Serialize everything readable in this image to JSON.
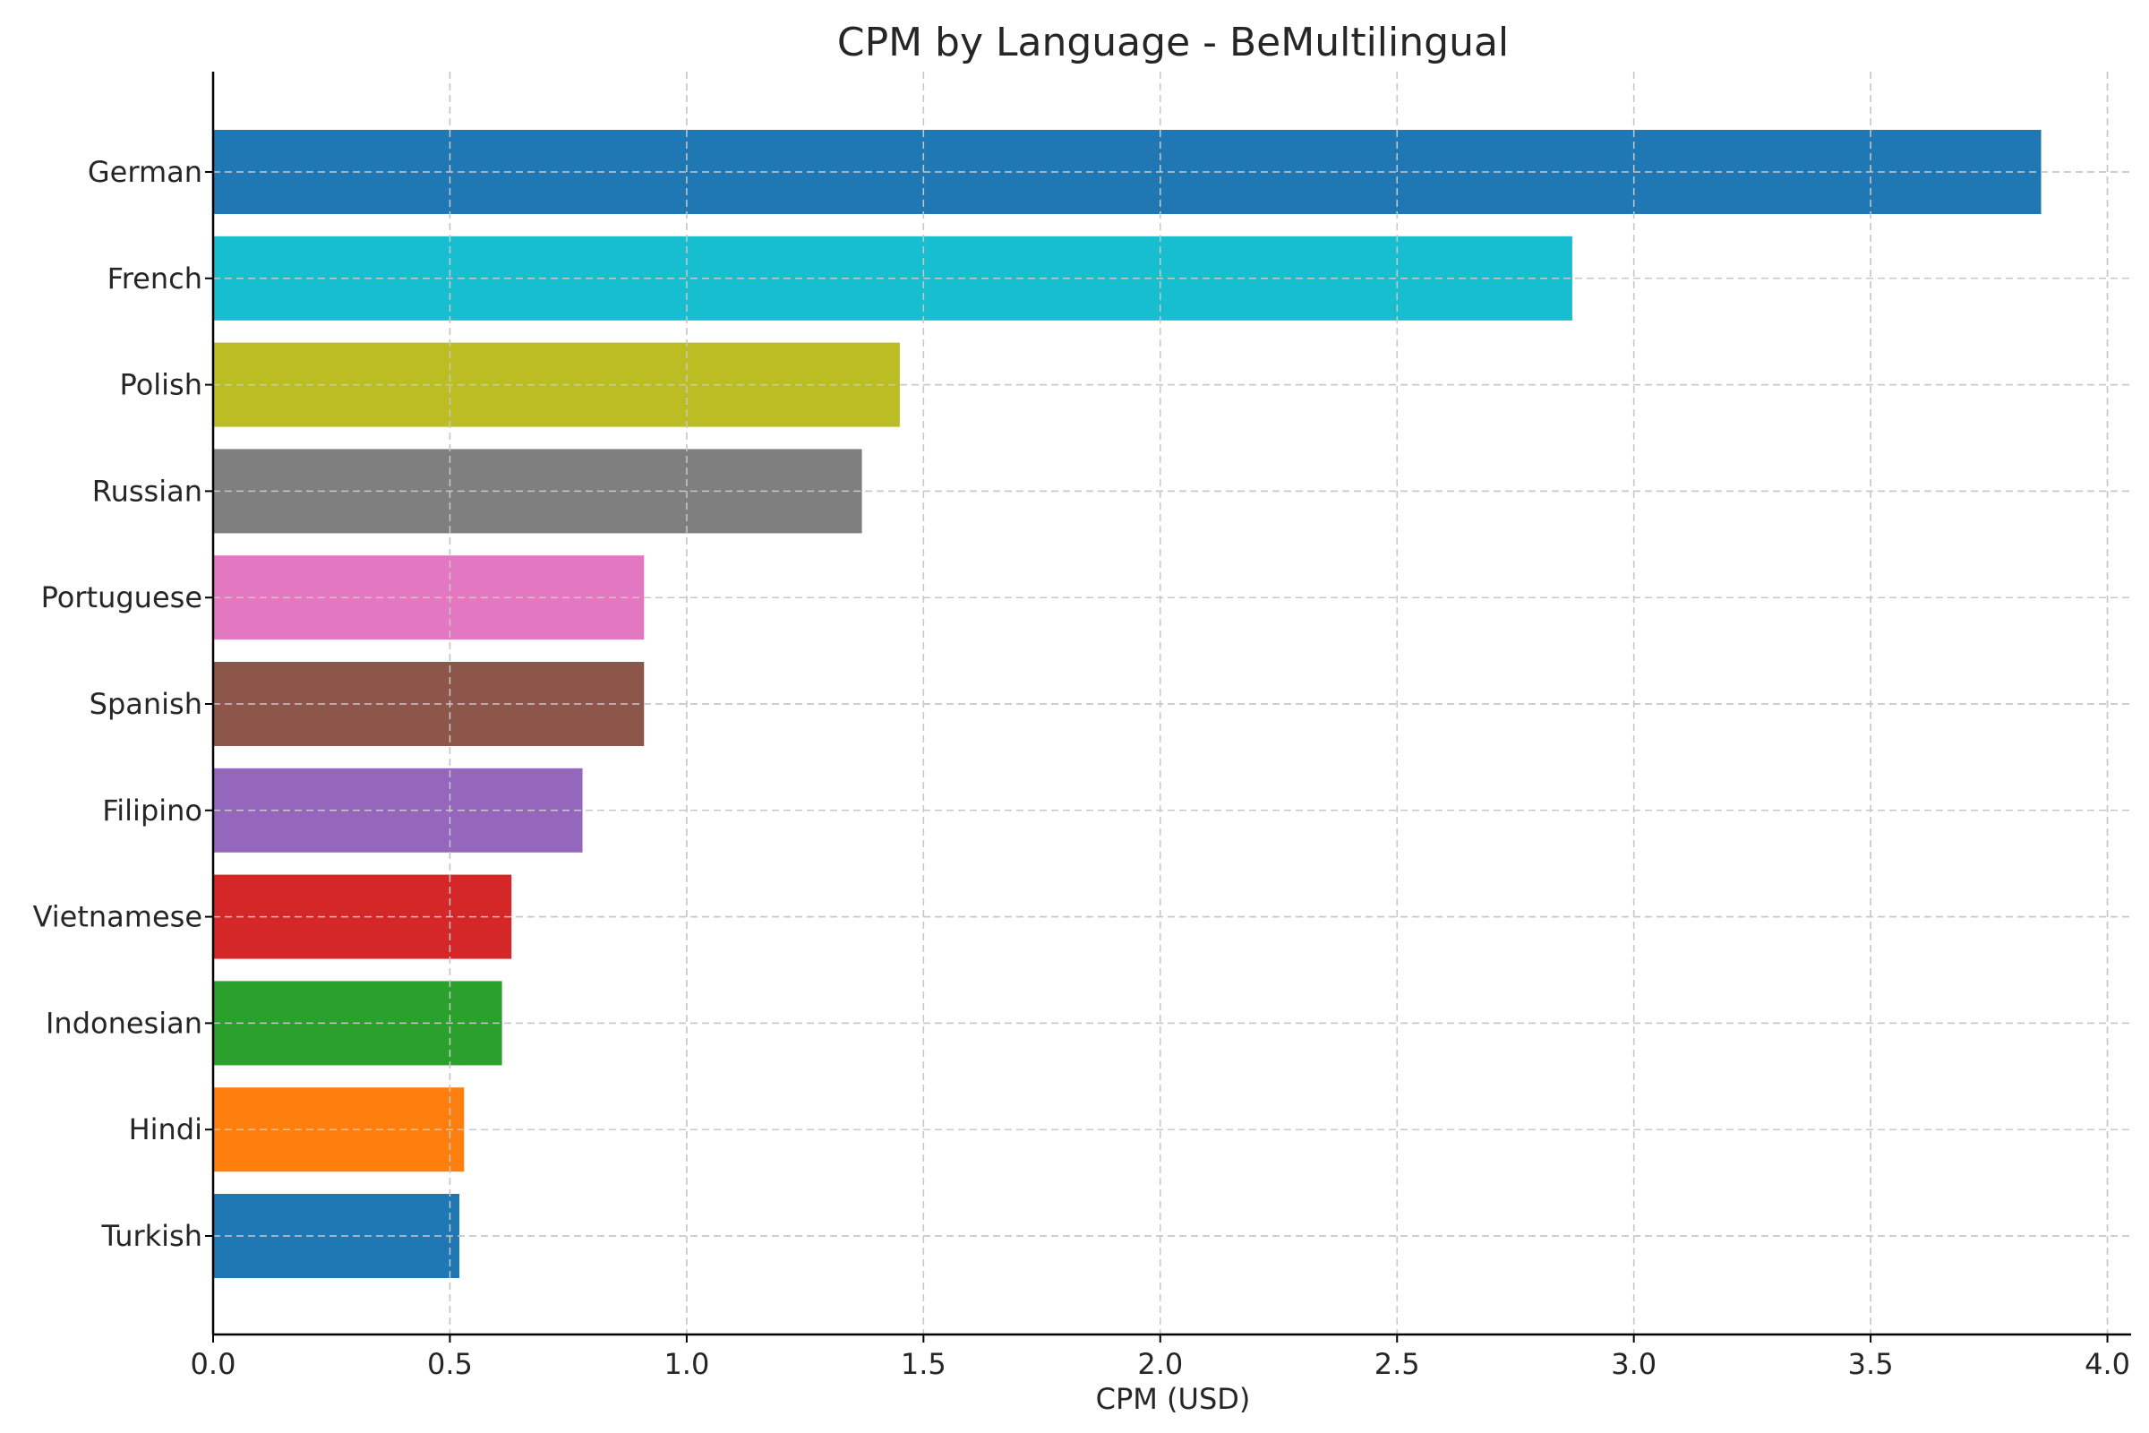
{
  "chart_data": {
    "type": "bar",
    "orientation": "horizontal",
    "title": "CPM by Language - BeMultilingual",
    "xlabel": "CPM (USD)",
    "ylabel": "",
    "xlim": [
      0,
      4.05
    ],
    "xticks": [
      "0.0",
      "0.5",
      "1.0",
      "1.5",
      "2.0",
      "2.5",
      "3.0",
      "3.5",
      "4.0"
    ],
    "grid": true,
    "categories": [
      "German",
      "French",
      "Polish",
      "Russian",
      "Portuguese",
      "Spanish",
      "Filipino",
      "Vietnamese",
      "Indonesian",
      "Hindi",
      "Turkish"
    ],
    "values": [
      3.86,
      2.87,
      1.45,
      1.37,
      0.91,
      0.91,
      0.78,
      0.63,
      0.61,
      0.53,
      0.52
    ],
    "colors": [
      "#1f77b4",
      "#17becf",
      "#bcbd22",
      "#7f7f7f",
      "#e377c2",
      "#8c564b",
      "#9467bd",
      "#d62728",
      "#2ca02c",
      "#ff7f0e",
      "#1f77b4"
    ]
  }
}
